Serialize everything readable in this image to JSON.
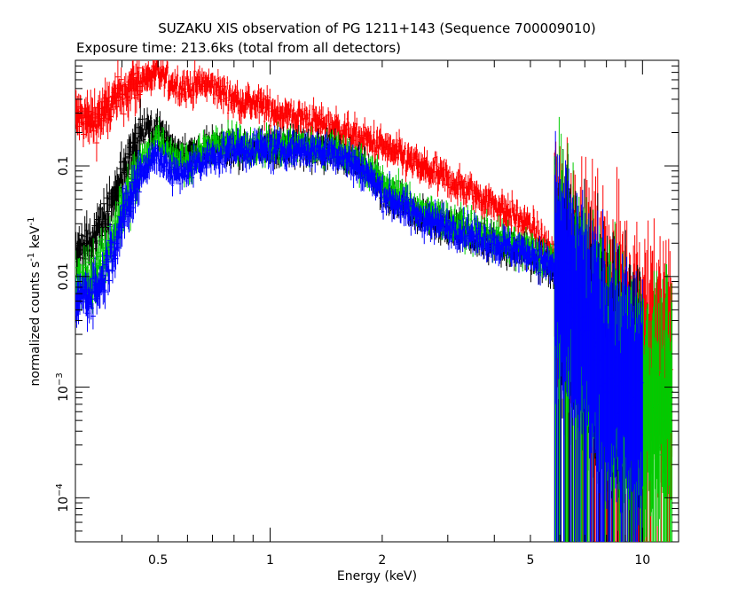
{
  "chart_data": {
    "type": "scatter",
    "title": "SUZAKU XIS observation of PG 1211+143 (Sequence 700009010)",
    "subtitle": "Exposure time: 213.6ks (total from all detectors)",
    "xlabel": "Energy (keV)",
    "ylabel_parts": [
      "normalized counts s",
      "-1",
      " keV",
      "-1"
    ],
    "x_scale": "log",
    "y_scale": "log",
    "xlim": [
      0.3,
      12.5
    ],
    "ylim": [
      4e-05,
      0.9
    ],
    "grid": false,
    "x_tick_labels": [
      {
        "value": 0.5,
        "label": "0.5"
      },
      {
        "value": 1,
        "label": "1"
      },
      {
        "value": 2,
        "label": "2"
      },
      {
        "value": 5,
        "label": "5"
      },
      {
        "value": 10,
        "label": "10"
      }
    ],
    "y_tick_labels": [
      {
        "value": 0.1,
        "mantissa": "0.1",
        "exp": ""
      },
      {
        "value": 0.01,
        "mantissa": "0.01",
        "exp": ""
      },
      {
        "value": 0.001,
        "mantissa": "10",
        "exp": "−3"
      },
      {
        "value": 0.0001,
        "mantissa": "10",
        "exp": "−4"
      }
    ],
    "series": [
      {
        "color": "#ff0000",
        "points": [
          [
            0.3,
            0.28
          ],
          [
            0.33,
            0.25
          ],
          [
            0.36,
            0.3
          ],
          [
            0.4,
            0.45
          ],
          [
            0.45,
            0.6
          ],
          [
            0.5,
            0.68
          ],
          [
            0.55,
            0.55
          ],
          [
            0.6,
            0.5
          ],
          [
            0.65,
            0.55
          ],
          [
            0.7,
            0.52
          ],
          [
            0.8,
            0.4
          ],
          [
            0.9,
            0.37
          ],
          [
            1.0,
            0.32
          ],
          [
            1.2,
            0.27
          ],
          [
            1.5,
            0.22
          ],
          [
            1.8,
            0.17
          ],
          [
            2.0,
            0.15
          ],
          [
            2.5,
            0.1
          ],
          [
            3.0,
            0.075
          ],
          [
            4.0,
            0.045
          ],
          [
            5.0,
            0.028
          ],
          [
            5.8,
            0.015
          ],
          [
            6.5,
            0.009
          ],
          [
            8.0,
            0.004
          ],
          [
            10.0,
            0.002
          ],
          [
            12.0,
            0.0015
          ]
        ]
      },
      {
        "color": "#000000",
        "points": [
          [
            0.3,
            0.015
          ],
          [
            0.35,
            0.025
          ],
          [
            0.4,
            0.08
          ],
          [
            0.45,
            0.2
          ],
          [
            0.5,
            0.22
          ],
          [
            0.55,
            0.14
          ],
          [
            0.6,
            0.13
          ],
          [
            0.7,
            0.14
          ],
          [
            0.8,
            0.15
          ],
          [
            0.9,
            0.14
          ],
          [
            1.0,
            0.15
          ],
          [
            1.2,
            0.15
          ],
          [
            1.5,
            0.14
          ],
          [
            1.8,
            0.1
          ],
          [
            2.0,
            0.06
          ],
          [
            2.5,
            0.035
          ],
          [
            3.0,
            0.028
          ],
          [
            4.0,
            0.02
          ],
          [
            5.0,
            0.016
          ],
          [
            5.8,
            0.012
          ],
          [
            6.5,
            0.006
          ],
          [
            8.0,
            0.002
          ],
          [
            10.0,
            0.001
          ]
        ]
      },
      {
        "color": "#00cc00",
        "points": [
          [
            0.3,
            0.008
          ],
          [
            0.35,
            0.012
          ],
          [
            0.4,
            0.04
          ],
          [
            0.45,
            0.1
          ],
          [
            0.5,
            0.18
          ],
          [
            0.55,
            0.12
          ],
          [
            0.6,
            0.11
          ],
          [
            0.7,
            0.15
          ],
          [
            0.8,
            0.16
          ],
          [
            0.9,
            0.15
          ],
          [
            1.0,
            0.15
          ],
          [
            1.2,
            0.15
          ],
          [
            1.5,
            0.14
          ],
          [
            1.8,
            0.1
          ],
          [
            2.0,
            0.07
          ],
          [
            2.5,
            0.04
          ],
          [
            3.0,
            0.032
          ],
          [
            4.0,
            0.022
          ],
          [
            5.0,
            0.017
          ],
          [
            5.8,
            0.013
          ],
          [
            6.5,
            0.005
          ],
          [
            8.0,
            0.0015
          ],
          [
            10.0,
            0.0008
          ],
          [
            12.0,
            0.0005
          ]
        ]
      },
      {
        "color": "#0000ff",
        "points": [
          [
            0.3,
            0.006
          ],
          [
            0.35,
            0.008
          ],
          [
            0.4,
            0.03
          ],
          [
            0.45,
            0.09
          ],
          [
            0.5,
            0.13
          ],
          [
            0.55,
            0.08
          ],
          [
            0.6,
            0.09
          ],
          [
            0.7,
            0.12
          ],
          [
            0.8,
            0.14
          ],
          [
            0.9,
            0.14
          ],
          [
            1.0,
            0.14
          ],
          [
            1.2,
            0.14
          ],
          [
            1.5,
            0.13
          ],
          [
            1.8,
            0.09
          ],
          [
            2.0,
            0.055
          ],
          [
            2.5,
            0.035
          ],
          [
            3.0,
            0.028
          ],
          [
            4.0,
            0.02
          ],
          [
            5.0,
            0.016
          ],
          [
            5.8,
            0.012
          ],
          [
            6.5,
            0.005
          ],
          [
            8.0,
            0.0015
          ],
          [
            10.0,
            0.0007
          ]
        ]
      }
    ]
  }
}
